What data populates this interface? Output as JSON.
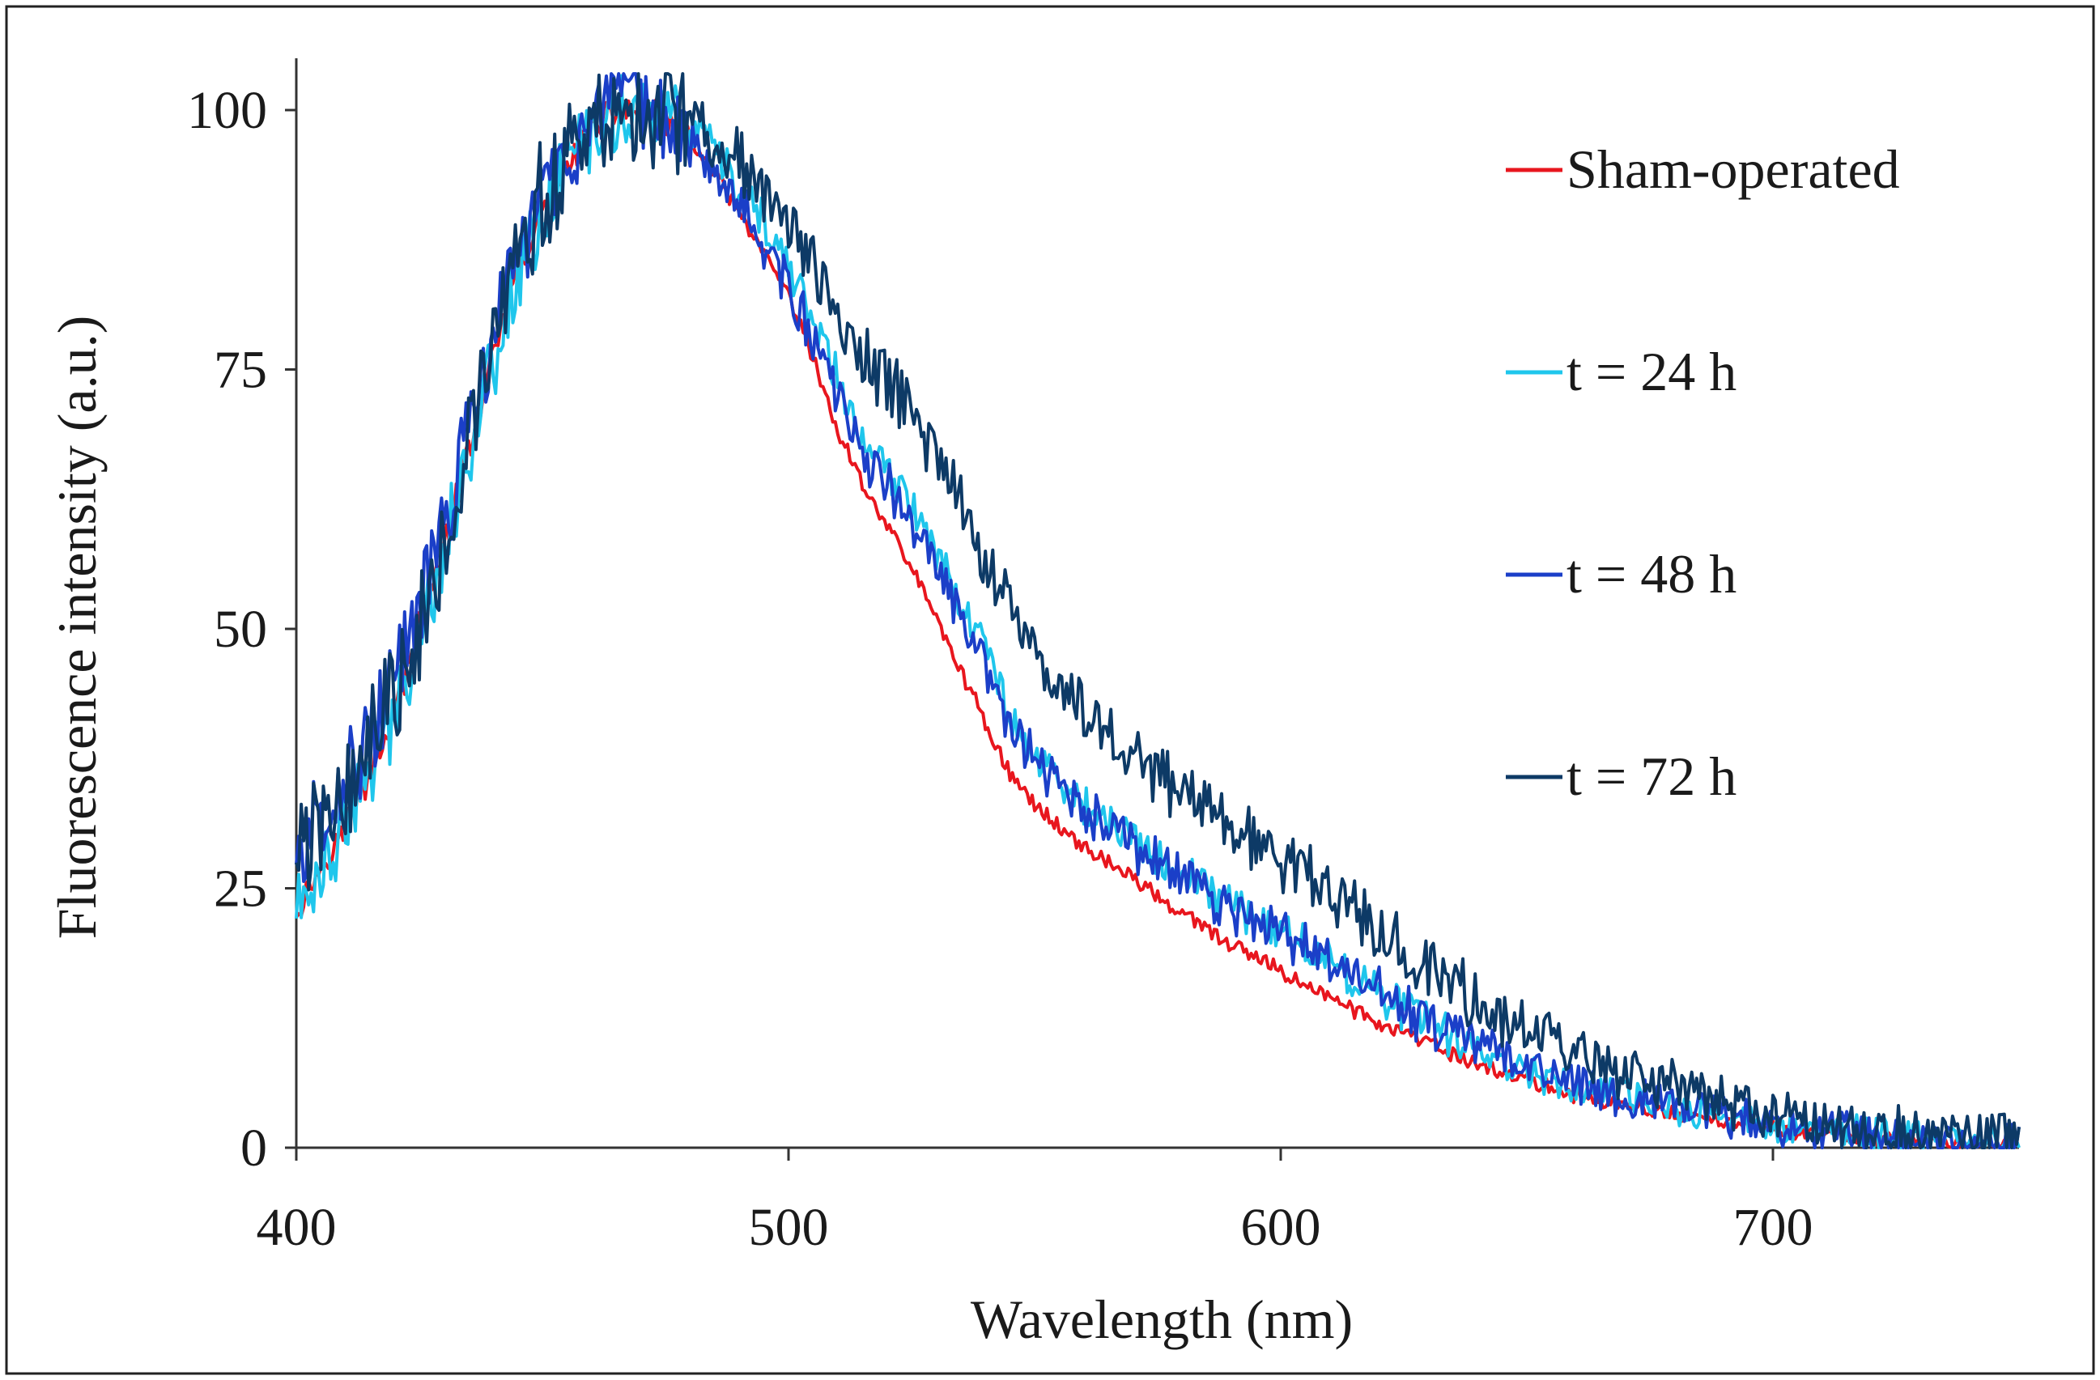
{
  "chart_data": {
    "type": "line",
    "title": "",
    "xlabel": "Wavelength (nm)",
    "ylabel": "Fluorescence intensity (a.u.)",
    "xlim": [
      400,
      750
    ],
    "ylim": [
      0,
      100
    ],
    "x_ticks": [
      400,
      500,
      600,
      700
    ],
    "y_ticks": [
      0,
      25,
      50,
      75,
      100
    ],
    "x_tick_labels": [
      "400",
      "500",
      "600",
      "700"
    ],
    "y_tick_labels": [
      "0",
      "25",
      "50",
      "75",
      "100"
    ],
    "grid": false,
    "legend_position": "right",
    "x": [
      400,
      405,
      410,
      415,
      420,
      425,
      430,
      435,
      440,
      445,
      450,
      455,
      460,
      465,
      470,
      475,
      480,
      485,
      490,
      495,
      500,
      505,
      510,
      515,
      520,
      525,
      530,
      535,
      540,
      545,
      550,
      560,
      570,
      580,
      590,
      600,
      610,
      620,
      630,
      640,
      650,
      660,
      670,
      680,
      690,
      700,
      710,
      720,
      730,
      740,
      750
    ],
    "series": [
      {
        "name": "Sham-operated",
        "color": "#e8161e",
        "noise": 0.6,
        "values": [
          23,
          27,
          31,
          36,
          42,
          50,
          58,
          67,
          76,
          84,
          90,
          95,
          98,
          100,
          100,
          99,
          97,
          94,
          90,
          86,
          82,
          76,
          69,
          64,
          60,
          56,
          51,
          46,
          41,
          36,
          33,
          29,
          26,
          22.5,
          19.5,
          17,
          14.5,
          12,
          10,
          8,
          6.5,
          5,
          4,
          3.2,
          2.5,
          1.8,
          1.3,
          0.9,
          0.6,
          0.4,
          0.3
        ]
      },
      {
        "name": "t = 24 h",
        "color": "#1fc6ec",
        "noise": 1.6,
        "values": [
          23,
          27,
          31,
          36,
          42,
          50,
          58,
          67,
          76,
          84,
          90,
          95,
          98,
          100,
          100,
          100,
          98,
          96,
          92,
          89,
          85,
          80,
          74,
          68,
          65,
          62,
          58,
          53,
          48,
          42,
          38,
          33,
          29.5,
          26.5,
          23.5,
          21,
          18,
          15,
          12,
          9.5,
          7.5,
          6,
          4.8,
          3.8,
          3,
          2.2,
          1.7,
          1.2,
          0.9,
          0.6,
          0.5
        ]
      },
      {
        "name": "t = 48 h",
        "color": "#1b3fc8",
        "noise": 1.8,
        "values": [
          28,
          32,
          36,
          40,
          45,
          52,
          60,
          69,
          78,
          86,
          92,
          96,
          98,
          100,
          100,
          99,
          97,
          95,
          91,
          87,
          83,
          78,
          72,
          67,
          64,
          60,
          56,
          51,
          46,
          41,
          37,
          32.5,
          29,
          26,
          23,
          20.5,
          18,
          15,
          12,
          10,
          8,
          6.5,
          5,
          4,
          3,
          2.3,
          1.7,
          1.2,
          0.9,
          0.6,
          0.5
        ]
      },
      {
        "name": "t = 72 h",
        "color": "#0d3a66",
        "noise": 2.4,
        "values": [
          28,
          31,
          35,
          39,
          44,
          51,
          59,
          68,
          77,
          85,
          91,
          95,
          98,
          100,
          100,
          100,
          99,
          97,
          95,
          92,
          89,
          85,
          80,
          76,
          74,
          71,
          67,
          62,
          57,
          52,
          47,
          42,
          38,
          34.5,
          31,
          28,
          24.5,
          21,
          17.5,
          14,
          11,
          9,
          7,
          5.5,
          4.2,
          3.2,
          2.4,
          1.8,
          1.3,
          1,
          0.8
        ]
      }
    ]
  }
}
